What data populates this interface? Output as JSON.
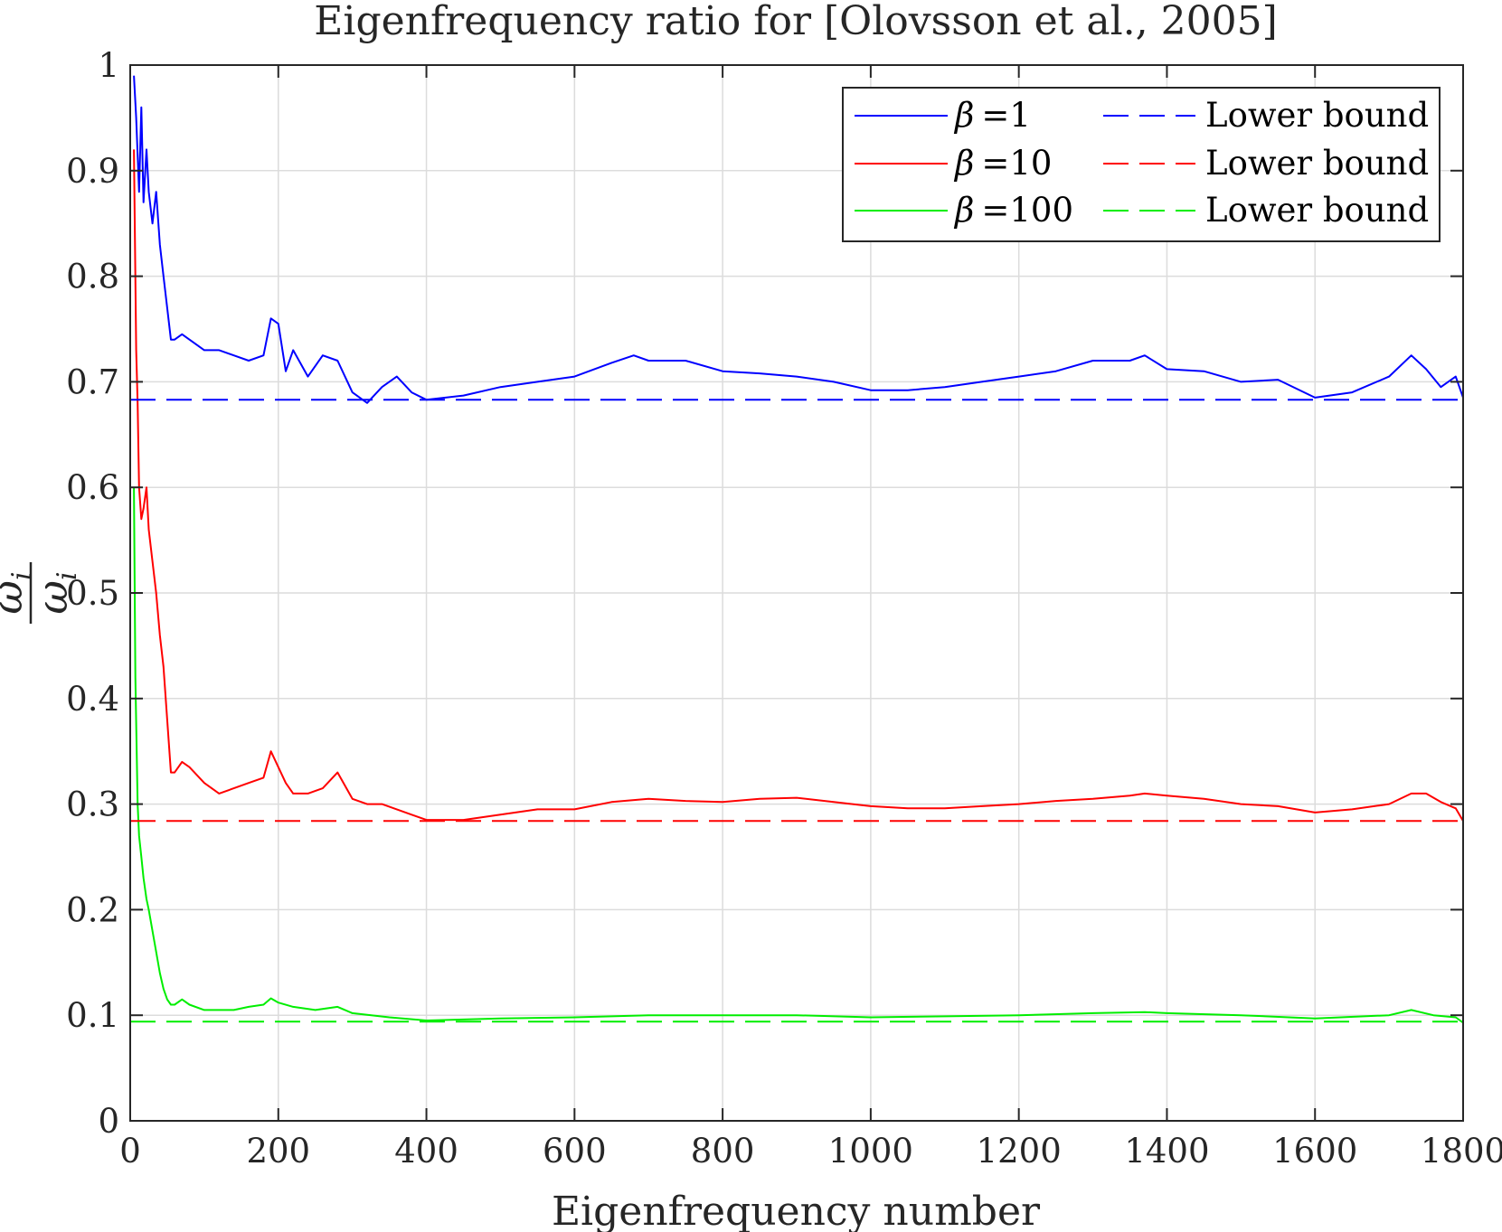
{
  "chart_data": {
    "type": "line",
    "title": "Eigenfrequency ratio for [Olovsson et al., 2005]",
    "xlabel": "Eigenfrequency number",
    "ylabel": {
      "numerator": "ω̄",
      "denominator": "ω",
      "subscript": "i"
    },
    "xlim": [
      0,
      1800
    ],
    "ylim": [
      0,
      1
    ],
    "xticks": [
      "0",
      "200",
      "400",
      "600",
      "800",
      "1000",
      "1200",
      "1400",
      "1600",
      "1800"
    ],
    "xtick_values": [
      0,
      200,
      400,
      600,
      800,
      1000,
      1200,
      1400,
      1600,
      1800
    ],
    "yticks": [
      "0",
      "0.1",
      "0.2",
      "0.3",
      "0.4",
      "0.5",
      "0.6",
      "0.7",
      "0.8",
      "0.9",
      "1"
    ],
    "ytick_values": [
      0,
      0.1,
      0.2,
      0.3,
      0.4,
      0.5,
      0.6,
      0.7,
      0.8,
      0.9,
      1.0
    ],
    "grid": true,
    "legend_position": "top-right",
    "series": [
      {
        "name": "β =1",
        "beta_symbol": "β",
        "beta_value": "=1",
        "color": "#0000ff",
        "style": "solid",
        "x": [
          5,
          8,
          12,
          15,
          18,
          22,
          25,
          30,
          35,
          40,
          45,
          50,
          55,
          60,
          70,
          80,
          100,
          120,
          140,
          160,
          180,
          190,
          200,
          210,
          220,
          240,
          260,
          280,
          300,
          320,
          340,
          360,
          380,
          400,
          450,
          500,
          550,
          600,
          650,
          680,
          700,
          750,
          800,
          850,
          900,
          950,
          1000,
          1050,
          1100,
          1150,
          1200,
          1250,
          1300,
          1350,
          1370,
          1400,
          1450,
          1500,
          1550,
          1600,
          1650,
          1700,
          1730,
          1750,
          1770,
          1790,
          1800
        ],
        "y": [
          0.99,
          0.95,
          0.88,
          0.96,
          0.87,
          0.92,
          0.88,
          0.85,
          0.88,
          0.83,
          0.8,
          0.77,
          0.74,
          0.74,
          0.745,
          0.74,
          0.73,
          0.73,
          0.725,
          0.72,
          0.725,
          0.76,
          0.755,
          0.71,
          0.73,
          0.705,
          0.725,
          0.72,
          0.69,
          0.68,
          0.695,
          0.705,
          0.69,
          0.683,
          0.687,
          0.695,
          0.7,
          0.705,
          0.718,
          0.725,
          0.72,
          0.72,
          0.71,
          0.708,
          0.705,
          0.7,
          0.692,
          0.692,
          0.695,
          0.7,
          0.705,
          0.71,
          0.72,
          0.72,
          0.725,
          0.712,
          0.71,
          0.7,
          0.702,
          0.685,
          0.69,
          0.705,
          0.725,
          0.712,
          0.695,
          0.705,
          0.685
        ]
      },
      {
        "name": "β =10",
        "beta_symbol": "β",
        "beta_value": "=10",
        "color": "#ff0000",
        "style": "solid",
        "x": [
          5,
          8,
          10,
          12,
          15,
          18,
          22,
          25,
          30,
          35,
          40,
          45,
          50,
          55,
          60,
          70,
          80,
          100,
          120,
          140,
          160,
          180,
          190,
          200,
          210,
          220,
          240,
          260,
          280,
          300,
          320,
          340,
          360,
          380,
          400,
          450,
          500,
          550,
          600,
          650,
          700,
          750,
          800,
          850,
          900,
          950,
          1000,
          1050,
          1100,
          1150,
          1200,
          1250,
          1300,
          1350,
          1370,
          1400,
          1450,
          1500,
          1550,
          1600,
          1650,
          1700,
          1730,
          1750,
          1770,
          1790,
          1800
        ],
        "y": [
          0.92,
          0.73,
          0.68,
          0.6,
          0.57,
          0.58,
          0.6,
          0.56,
          0.53,
          0.5,
          0.46,
          0.43,
          0.38,
          0.33,
          0.33,
          0.34,
          0.335,
          0.32,
          0.31,
          0.315,
          0.32,
          0.325,
          0.35,
          0.335,
          0.32,
          0.31,
          0.31,
          0.315,
          0.33,
          0.305,
          0.3,
          0.3,
          0.295,
          0.29,
          0.285,
          0.285,
          0.29,
          0.295,
          0.295,
          0.302,
          0.305,
          0.303,
          0.302,
          0.305,
          0.306,
          0.302,
          0.298,
          0.296,
          0.296,
          0.298,
          0.3,
          0.303,
          0.305,
          0.308,
          0.31,
          0.308,
          0.305,
          0.3,
          0.298,
          0.292,
          0.295,
          0.3,
          0.31,
          0.31,
          0.302,
          0.296,
          0.284
        ]
      },
      {
        "name": "β =100",
        "beta_symbol": "β",
        "beta_value": "=100",
        "color": "#00ee00",
        "style": "solid",
        "x": [
          5,
          7,
          10,
          12,
          15,
          18,
          22,
          25,
          30,
          35,
          40,
          45,
          50,
          55,
          60,
          70,
          80,
          100,
          120,
          140,
          160,
          180,
          190,
          200,
          220,
          250,
          280,
          300,
          350,
          400,
          450,
          500,
          600,
          700,
          800,
          900,
          1000,
          1100,
          1200,
          1300,
          1370,
          1400,
          1500,
          1600,
          1700,
          1730,
          1760,
          1790,
          1800
        ],
        "y": [
          0.6,
          0.42,
          0.3,
          0.27,
          0.25,
          0.23,
          0.21,
          0.2,
          0.18,
          0.16,
          0.14,
          0.125,
          0.115,
          0.11,
          0.11,
          0.115,
          0.11,
          0.105,
          0.105,
          0.105,
          0.108,
          0.11,
          0.116,
          0.112,
          0.108,
          0.105,
          0.108,
          0.102,
          0.098,
          0.095,
          0.096,
          0.097,
          0.098,
          0.1,
          0.1,
          0.1,
          0.098,
          0.099,
          0.1,
          0.102,
          0.103,
          0.102,
          0.1,
          0.097,
          0.1,
          0.105,
          0.1,
          0.098,
          0.093
        ]
      },
      {
        "name": "Lower bound",
        "color": "#0000ff",
        "style": "dashed",
        "x": [
          0,
          1800
        ],
        "y": [
          0.683,
          0.683
        ]
      },
      {
        "name": "Lower bound",
        "color": "#ff0000",
        "style": "dashed",
        "x": [
          0,
          1800
        ],
        "y": [
          0.284,
          0.284
        ]
      },
      {
        "name": "Lower bound",
        "color": "#00ee00",
        "style": "dashed",
        "x": [
          0,
          1800
        ],
        "y": [
          0.094,
          0.094
        ]
      }
    ]
  }
}
